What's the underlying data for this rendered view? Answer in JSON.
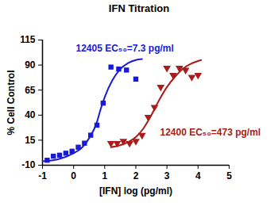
{
  "chart_data": {
    "type": "scatter",
    "title": "IFN Titration",
    "x_label": "[IFN] log (pg/ml)",
    "y_label": "% Cell Control",
    "xlim": [
      -1,
      5
    ],
    "xticks": [
      -1,
      0,
      1,
      2,
      3,
      4,
      5
    ],
    "ylim": [
      -10,
      115
    ],
    "yticks": [
      -10,
      15,
      40,
      65,
      90,
      115
    ],
    "grid": false,
    "series": [
      {
        "name": "12405",
        "label": "12405 EC₅₀=7.3 pg/ml",
        "color": "#1a1ad6",
        "marker": "square",
        "x": [
          -0.85,
          -0.65,
          -0.45,
          -0.25,
          -0.05,
          0.15,
          0.35,
          0.55,
          0.75,
          0.95,
          1.2,
          1.45,
          1.7,
          2.0
        ],
        "values": [
          -5,
          -1,
          0,
          2,
          4,
          8,
          12,
          20,
          30,
          52,
          88,
          86,
          85,
          76
        ],
        "fit": {
          "x": [
            -1,
            -0.5,
            0,
            0.25,
            0.5,
            0.75,
            0.86,
            1.0,
            1.25,
            1.5,
            1.75,
            2.0,
            2.2
          ],
          "values": [
            -6,
            -4,
            2,
            7,
            17,
            33,
            45,
            58,
            75,
            86,
            92,
            95,
            96
          ]
        }
      },
      {
        "name": "12400",
        "label": "12400 EC₅₀=473 pg/ml",
        "color": "#a81c1c",
        "marker": "triangle-down",
        "x": [
          1.2,
          1.4,
          1.6,
          1.8,
          2.0,
          2.2,
          2.4,
          2.6,
          2.8,
          3.0,
          3.2,
          3.4,
          3.6,
          3.8,
          4.0
        ],
        "values": [
          12,
          12,
          14,
          12,
          14,
          20,
          38,
          48,
          68,
          87,
          80,
          87,
          85,
          78,
          80
        ],
        "fit": {
          "x": [
            1.2,
            1.5,
            1.75,
            2.0,
            2.25,
            2.5,
            2.75,
            3.0,
            3.25,
            3.5,
            3.75,
            4.0,
            4.1
          ],
          "values": [
            8,
            10,
            13,
            18,
            27,
            40,
            55,
            68,
            78,
            86,
            91,
            94,
            95
          ]
        }
      }
    ]
  }
}
